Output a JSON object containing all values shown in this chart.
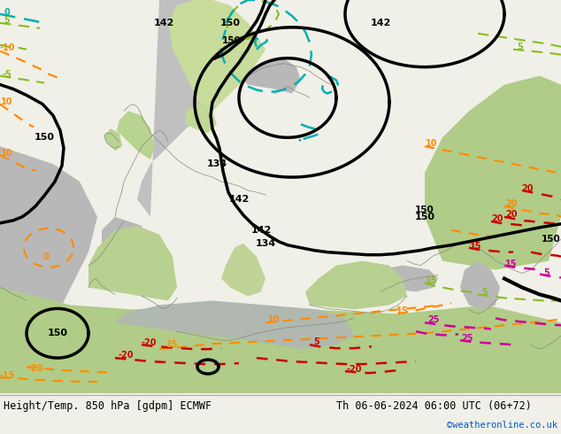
{
  "title_left": "Height/Temp. 850 hPa [gdpm] ECMWF",
  "title_right": "Th 06-06-2024 06:00 UTC (06+72)",
  "credit": "©weatheronline.co.uk",
  "bottom_text_color": "#000000",
  "credit_color": "#0055cc",
  "map_colors": {
    "land_green": "#b8d898",
    "land_light_green": "#c8e0a8",
    "sea_gray": "#c0c0c0",
    "land_warm_green": "#a8cc78"
  },
  "contours": {
    "black_lw": 2.2,
    "temp_lw": 1.6,
    "orange": "#ff8c00",
    "green": "#88bb22",
    "cyan": "#00b0b0",
    "red": "#cc0000",
    "magenta": "#cc0099"
  }
}
